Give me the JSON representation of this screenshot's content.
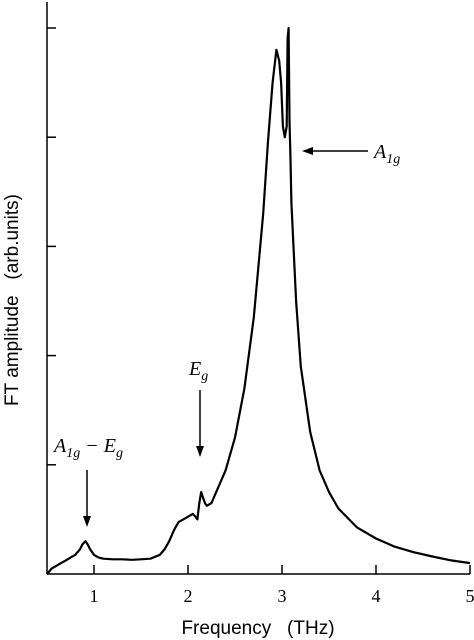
{
  "chart_data": {
    "type": "line",
    "xlabel": "Frequency   (THz)",
    "ylabel": "FT amplitude   (arb.units)",
    "xlim": [
      0.5,
      5.0
    ],
    "ylim": [
      0,
      1.0
    ],
    "x_ticks": [
      "1",
      "2",
      "3",
      "4",
      "5"
    ],
    "grid": false,
    "series": [
      {
        "x": [
          0.5,
          0.55,
          0.6,
          0.65,
          0.7,
          0.75,
          0.8,
          0.85,
          0.88,
          0.91,
          0.93,
          0.96,
          1.0,
          1.05,
          1.1,
          1.2,
          1.3,
          1.4,
          1.5,
          1.6,
          1.7,
          1.75,
          1.8,
          1.85,
          1.9,
          1.95,
          2.0,
          2.05,
          2.08,
          2.1,
          2.12,
          2.14,
          2.16,
          2.18,
          2.2,
          2.25,
          2.3,
          2.4,
          2.5,
          2.6,
          2.7,
          2.8,
          2.85,
          2.9,
          2.94,
          2.97,
          2.99,
          3.01,
          3.03,
          3.05,
          3.06,
          3.07,
          3.08,
          3.09,
          3.1,
          3.15,
          3.2,
          3.3,
          3.4,
          3.5,
          3.6,
          3.8,
          4.0,
          4.2,
          4.4,
          4.6,
          4.8,
          5.0
        ],
        "y": [
          0.0,
          0.01,
          0.015,
          0.02,
          0.025,
          0.03,
          0.035,
          0.045,
          0.055,
          0.06,
          0.055,
          0.045,
          0.035,
          0.03,
          0.028,
          0.027,
          0.027,
          0.026,
          0.027,
          0.028,
          0.035,
          0.045,
          0.06,
          0.08,
          0.095,
          0.1,
          0.105,
          0.11,
          0.105,
          0.1,
          0.13,
          0.15,
          0.14,
          0.13,
          0.125,
          0.13,
          0.15,
          0.19,
          0.25,
          0.34,
          0.47,
          0.66,
          0.79,
          0.9,
          0.96,
          0.94,
          0.9,
          0.82,
          0.8,
          0.82,
          0.98,
          1.0,
          0.83,
          0.76,
          0.68,
          0.5,
          0.38,
          0.26,
          0.19,
          0.15,
          0.12,
          0.085,
          0.065,
          0.05,
          0.04,
          0.032,
          0.025,
          0.02
        ]
      }
    ],
    "annotations": [
      {
        "base": "A",
        "sub": "1g",
        "tail": "",
        "target_x": 3.06
      },
      {
        "base": "E",
        "sub": "g",
        "tail": "",
        "target_x": 2.14
      },
      {
        "base": "A",
        "sub": "1g",
        "tail": " − E",
        "tail_sub": "g",
        "target_x": 0.93
      }
    ]
  }
}
